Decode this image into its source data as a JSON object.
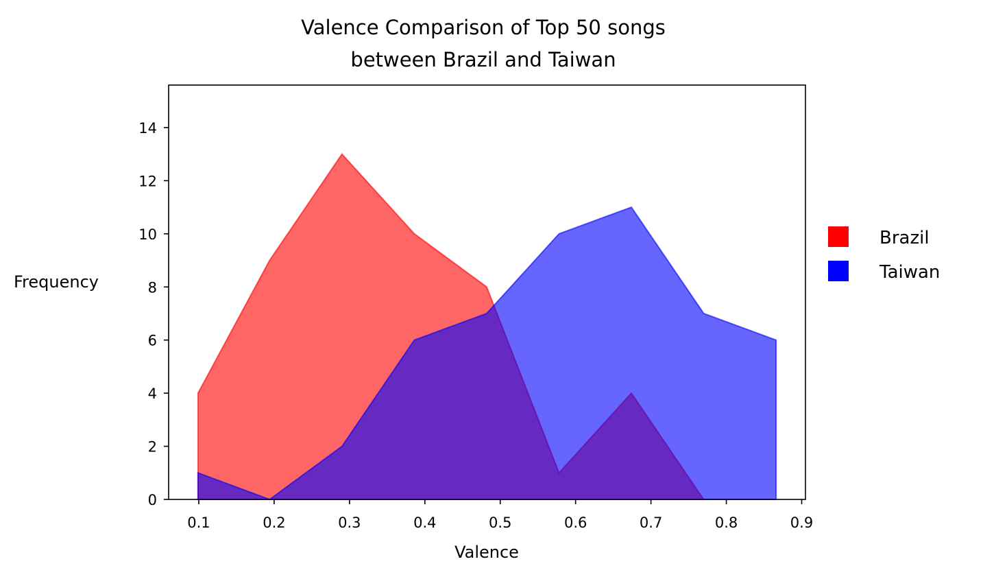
{
  "chart_data": {
    "type": "area",
    "title": "Valence Comparison of Top 50 songs\nbetween Brazil and Taiwan",
    "xlabel": "Valence",
    "ylabel": "Frequency",
    "xlim": [
      0.06,
      0.905
    ],
    "ylim": [
      0,
      15.6
    ],
    "x_ticks": [
      "0.1",
      "0.2",
      "0.3",
      "0.4",
      "0.5",
      "0.6",
      "0.7",
      "0.8",
      "0.9"
    ],
    "y_ticks": [
      "0",
      "2",
      "4",
      "6",
      "8",
      "10",
      "12",
      "14"
    ],
    "grid": false,
    "legend_position": "right",
    "series": [
      {
        "name": "Brazil",
        "color": "#ff0000",
        "x": [
          0.099,
          0.194,
          0.29,
          0.386,
          0.482,
          0.578,
          0.674,
          0.77
        ],
        "values": [
          4,
          9,
          13,
          10,
          8,
          1,
          4,
          0
        ]
      },
      {
        "name": "Taiwan",
        "color": "#0000ff",
        "x": [
          0.099,
          0.194,
          0.29,
          0.386,
          0.482,
          0.578,
          0.674,
          0.77,
          0.866
        ],
        "values": [
          1,
          0,
          2,
          6,
          7,
          10,
          11,
          7,
          6
        ]
      }
    ]
  }
}
